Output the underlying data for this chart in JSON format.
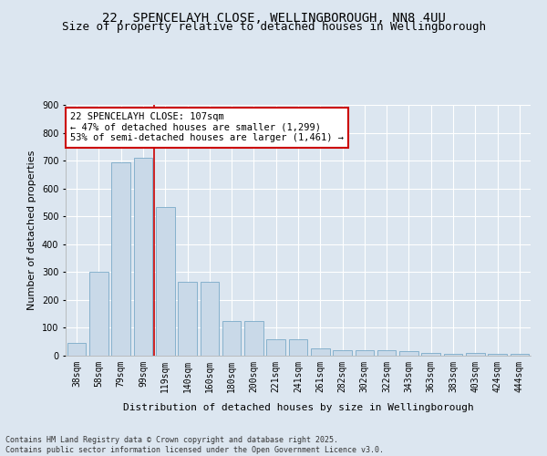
{
  "title1": "22, SPENCELAYH CLOSE, WELLINGBOROUGH, NN8 4UU",
  "title2": "Size of property relative to detached houses in Wellingborough",
  "xlabel": "Distribution of detached houses by size in Wellingborough",
  "ylabel": "Number of detached properties",
  "categories": [
    "38sqm",
    "58sqm",
    "79sqm",
    "99sqm",
    "119sqm",
    "140sqm",
    "160sqm",
    "180sqm",
    "200sqm",
    "221sqm",
    "241sqm",
    "261sqm",
    "282sqm",
    "302sqm",
    "322sqm",
    "343sqm",
    "363sqm",
    "383sqm",
    "403sqm",
    "424sqm",
    "444sqm"
  ],
  "values": [
    45,
    300,
    695,
    710,
    535,
    265,
    265,
    125,
    125,
    60,
    60,
    25,
    20,
    20,
    20,
    18,
    10,
    8,
    10,
    8,
    5
  ],
  "bar_color": "#c9d9e8",
  "bar_edge_color": "#7aaac8",
  "red_line_x": 3.5,
  "annotation_text": "22 SPENCELAYH CLOSE: 107sqm\n← 47% of detached houses are smaller (1,299)\n53% of semi-detached houses are larger (1,461) →",
  "annotation_box_color": "#ffffff",
  "annotation_box_edge_color": "#cc0000",
  "red_line_color": "#cc0000",
  "footer": "Contains HM Land Registry data © Crown copyright and database right 2025.\nContains public sector information licensed under the Open Government Licence v3.0.",
  "background_color": "#dce6f0",
  "plot_background": "#dce6f0",
  "ylim": [
    0,
    900
  ],
  "yticks": [
    0,
    100,
    200,
    300,
    400,
    500,
    600,
    700,
    800,
    900
  ],
  "title_fontsize": 10,
  "subtitle_fontsize": 9,
  "axis_fontsize": 8,
  "tick_fontsize": 7,
  "ann_fontsize": 7.5,
  "footer_fontsize": 6
}
